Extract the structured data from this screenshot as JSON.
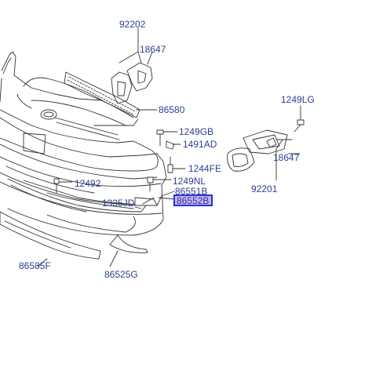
{
  "labels": {
    "p92202": "92202",
    "p18647_top": "18647",
    "p86580": "86580",
    "p1249LG": "1249LG",
    "p1249GB": "1249GB",
    "p1491AD": "1491AD",
    "p1244FE": "1244FE",
    "p12492": "12492",
    "p1249NL": "1249NL",
    "p86551B": "86551B",
    "p86552B": "86552B",
    "p1335JD": "1335JD",
    "p18647_right": "18647",
    "p92201": "92201",
    "p86585F": "86585F",
    "p86525G": "86525G"
  },
  "colors": {
    "label": "#2a3f8f",
    "highlight_fill": "#c9b6f0",
    "highlight_border": "#2b2fd8",
    "line": "#333333"
  }
}
